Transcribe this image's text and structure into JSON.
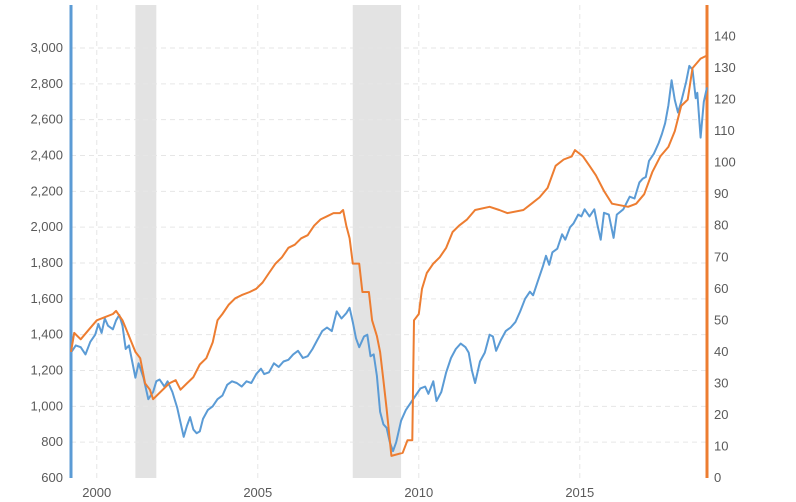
{
  "chart_data": {
    "type": "line",
    "title": "",
    "xlabel": "",
    "ylabel": "",
    "grid": true,
    "legend": "none",
    "x_range": [
      1999.2,
      2018.95
    ],
    "x_ticks": [
      {
        "value": 2000,
        "label": "2000"
      },
      {
        "value": 2005,
        "label": "2005"
      },
      {
        "value": 2010,
        "label": "2010"
      },
      {
        "value": 2015,
        "label": "2015"
      }
    ],
    "y_left": {
      "range": [
        600,
        3240
      ],
      "ticks": [
        {
          "value": 600,
          "label": "600"
        },
        {
          "value": 800,
          "label": "800"
        },
        {
          "value": 1000,
          "label": "1,000"
        },
        {
          "value": 1200,
          "label": "1,200"
        },
        {
          "value": 1400,
          "label": "1,400"
        },
        {
          "value": 1600,
          "label": "1,600"
        },
        {
          "value": 1800,
          "label": "1,800"
        },
        {
          "value": 2000,
          "label": "2,000"
        },
        {
          "value": 2200,
          "label": "2,200"
        },
        {
          "value": 2400,
          "label": "2,400"
        },
        {
          "value": 2600,
          "label": "2,600"
        },
        {
          "value": 2800,
          "label": "2,800"
        },
        {
          "value": 3000,
          "label": "3,000"
        }
      ],
      "color": "#5b9bd5"
    },
    "y_right": {
      "range": [
        0,
        150
      ],
      "ticks": [
        {
          "value": 0,
          "label": "0"
        },
        {
          "value": 10,
          "label": "10"
        },
        {
          "value": 20,
          "label": "20"
        },
        {
          "value": 30,
          "label": "30"
        },
        {
          "value": 40,
          "label": "40"
        },
        {
          "value": 50,
          "label": "50"
        },
        {
          "value": 60,
          "label": "60"
        },
        {
          "value": 70,
          "label": "70"
        },
        {
          "value": 80,
          "label": "80"
        },
        {
          "value": 90,
          "label": "90"
        },
        {
          "value": 100,
          "label": "100"
        },
        {
          "value": 110,
          "label": "110"
        },
        {
          "value": 120,
          "label": "120"
        },
        {
          "value": 130,
          "label": "130"
        },
        {
          "value": 140,
          "label": "140"
        }
      ],
      "color": "#ed7d31"
    },
    "recession_bands": [
      {
        "start": 2001.2,
        "end": 2001.85
      },
      {
        "start": 2007.95,
        "end": 2009.45
      }
    ],
    "series": [
      {
        "axis": "left",
        "color": "#5b9bd5",
        "points": [
          [
            1999.2,
            1300
          ],
          [
            1999.35,
            1340
          ],
          [
            1999.5,
            1330
          ],
          [
            1999.65,
            1290
          ],
          [
            1999.8,
            1360
          ],
          [
            1999.95,
            1400
          ],
          [
            2000.05,
            1460
          ],
          [
            2000.15,
            1410
          ],
          [
            2000.25,
            1490
          ],
          [
            2000.35,
            1450
          ],
          [
            2000.5,
            1430
          ],
          [
            2000.6,
            1480
          ],
          [
            2000.7,
            1510
          ],
          [
            2000.8,
            1450
          ],
          [
            2000.9,
            1320
          ],
          [
            2001.0,
            1340
          ],
          [
            2001.1,
            1250
          ],
          [
            2001.2,
            1160
          ],
          [
            2001.3,
            1240
          ],
          [
            2001.45,
            1160
          ],
          [
            2001.6,
            1040
          ],
          [
            2001.75,
            1080
          ],
          [
            2001.85,
            1140
          ],
          [
            2001.95,
            1150
          ],
          [
            2002.1,
            1110
          ],
          [
            2002.2,
            1140
          ],
          [
            2002.35,
            1080
          ],
          [
            2002.5,
            990
          ],
          [
            2002.6,
            910
          ],
          [
            2002.7,
            830
          ],
          [
            2002.8,
            890
          ],
          [
            2002.9,
            940
          ],
          [
            2003.0,
            870
          ],
          [
            2003.1,
            850
          ],
          [
            2003.2,
            860
          ],
          [
            2003.3,
            930
          ],
          [
            2003.45,
            980
          ],
          [
            2003.6,
            1000
          ],
          [
            2003.75,
            1040
          ],
          [
            2003.9,
            1060
          ],
          [
            2004.05,
            1120
          ],
          [
            2004.2,
            1140
          ],
          [
            2004.35,
            1130
          ],
          [
            2004.5,
            1110
          ],
          [
            2004.65,
            1140
          ],
          [
            2004.8,
            1130
          ],
          [
            2004.95,
            1180
          ],
          [
            2005.1,
            1210
          ],
          [
            2005.2,
            1180
          ],
          [
            2005.35,
            1190
          ],
          [
            2005.5,
            1240
          ],
          [
            2005.65,
            1220
          ],
          [
            2005.8,
            1250
          ],
          [
            2005.95,
            1260
          ],
          [
            2006.1,
            1290
          ],
          [
            2006.25,
            1310
          ],
          [
            2006.4,
            1270
          ],
          [
            2006.55,
            1280
          ],
          [
            2006.7,
            1320
          ],
          [
            2006.85,
            1370
          ],
          [
            2007.0,
            1420
          ],
          [
            2007.15,
            1440
          ],
          [
            2007.3,
            1420
          ],
          [
            2007.45,
            1530
          ],
          [
            2007.6,
            1490
          ],
          [
            2007.75,
            1520
          ],
          [
            2007.85,
            1550
          ],
          [
            2007.95,
            1470
          ],
          [
            2008.05,
            1380
          ],
          [
            2008.15,
            1330
          ],
          [
            2008.3,
            1390
          ],
          [
            2008.4,
            1400
          ],
          [
            2008.5,
            1280
          ],
          [
            2008.6,
            1290
          ],
          [
            2008.7,
            1170
          ],
          [
            2008.8,
            970
          ],
          [
            2008.9,
            900
          ],
          [
            2009.0,
            880
          ],
          [
            2009.1,
            800
          ],
          [
            2009.2,
            750
          ],
          [
            2009.3,
            800
          ],
          [
            2009.45,
            920
          ],
          [
            2009.6,
            980
          ],
          [
            2009.75,
            1020
          ],
          [
            2009.9,
            1060
          ],
          [
            2010.05,
            1100
          ],
          [
            2010.2,
            1110
          ],
          [
            2010.3,
            1070
          ],
          [
            2010.45,
            1140
          ],
          [
            2010.55,
            1030
          ],
          [
            2010.7,
            1080
          ],
          [
            2010.85,
            1190
          ],
          [
            2011.0,
            1270
          ],
          [
            2011.15,
            1320
          ],
          [
            2011.3,
            1350
          ],
          [
            2011.45,
            1330
          ],
          [
            2011.55,
            1300
          ],
          [
            2011.65,
            1200
          ],
          [
            2011.75,
            1130
          ],
          [
            2011.9,
            1250
          ],
          [
            2012.05,
            1300
          ],
          [
            2012.2,
            1400
          ],
          [
            2012.3,
            1390
          ],
          [
            2012.4,
            1310
          ],
          [
            2012.55,
            1370
          ],
          [
            2012.7,
            1420
          ],
          [
            2012.85,
            1440
          ],
          [
            2013.0,
            1470
          ],
          [
            2013.15,
            1530
          ],
          [
            2013.3,
            1600
          ],
          [
            2013.45,
            1640
          ],
          [
            2013.55,
            1620
          ],
          [
            2013.7,
            1700
          ],
          [
            2013.85,
            1780
          ],
          [
            2013.95,
            1840
          ],
          [
            2014.05,
            1790
          ],
          [
            2014.15,
            1860
          ],
          [
            2014.3,
            1880
          ],
          [
            2014.45,
            1960
          ],
          [
            2014.55,
            1930
          ],
          [
            2014.7,
            2000
          ],
          [
            2014.8,
            2020
          ],
          [
            2014.95,
            2070
          ],
          [
            2015.05,
            2060
          ],
          [
            2015.15,
            2100
          ],
          [
            2015.3,
            2060
          ],
          [
            2015.45,
            2100
          ],
          [
            2015.55,
            2010
          ],
          [
            2015.65,
            1930
          ],
          [
            2015.75,
            2080
          ],
          [
            2015.9,
            2070
          ],
          [
            2016.05,
            1940
          ],
          [
            2016.15,
            2070
          ],
          [
            2016.35,
            2100
          ],
          [
            2016.55,
            2170
          ],
          [
            2016.7,
            2160
          ],
          [
            2016.85,
            2250
          ],
          [
            2016.95,
            2270
          ],
          [
            2017.05,
            2280
          ],
          [
            2017.15,
            2370
          ],
          [
            2017.3,
            2410
          ],
          [
            2017.45,
            2470
          ],
          [
            2017.55,
            2520
          ],
          [
            2017.65,
            2580
          ],
          [
            2017.75,
            2680
          ],
          [
            2017.85,
            2820
          ],
          [
            2017.95,
            2710
          ],
          [
            2018.05,
            2640
          ],
          [
            2018.15,
            2700
          ],
          [
            2018.3,
            2810
          ],
          [
            2018.4,
            2900
          ],
          [
            2018.5,
            2880
          ],
          [
            2018.6,
            2720
          ],
          [
            2018.65,
            2750
          ],
          [
            2018.75,
            2500
          ],
          [
            2018.85,
            2700
          ],
          [
            2018.95,
            2780
          ]
        ]
      },
      {
        "axis": "right",
        "color": "#ed7d31",
        "points": [
          [
            1999.2,
            40
          ],
          [
            1999.3,
            46
          ],
          [
            1999.5,
            44
          ],
          [
            1999.75,
            47
          ],
          [
            2000.0,
            50
          ],
          [
            2000.25,
            51
          ],
          [
            2000.5,
            52
          ],
          [
            2000.6,
            53
          ],
          [
            2000.8,
            50
          ],
          [
            2001.0,
            45
          ],
          [
            2001.2,
            40
          ],
          [
            2001.35,
            38
          ],
          [
            2001.5,
            30
          ],
          [
            2001.65,
            28
          ],
          [
            2001.75,
            25
          ],
          [
            2002.25,
            30
          ],
          [
            2002.45,
            31
          ],
          [
            2002.6,
            28
          ],
          [
            2002.8,
            30
          ],
          [
            2003.0,
            32
          ],
          [
            2003.2,
            36
          ],
          [
            2003.4,
            38
          ],
          [
            2003.6,
            43
          ],
          [
            2003.75,
            50
          ],
          [
            2003.9,
            52
          ],
          [
            2004.1,
            55
          ],
          [
            2004.3,
            57
          ],
          [
            2004.5,
            58
          ],
          [
            2004.75,
            59
          ],
          [
            2004.95,
            60
          ],
          [
            2005.15,
            62
          ],
          [
            2005.35,
            65
          ],
          [
            2005.55,
            68
          ],
          [
            2005.75,
            70
          ],
          [
            2005.95,
            73
          ],
          [
            2006.15,
            74
          ],
          [
            2006.35,
            76
          ],
          [
            2006.55,
            77
          ],
          [
            2006.75,
            80
          ],
          [
            2006.95,
            82
          ],
          [
            2007.15,
            83
          ],
          [
            2007.35,
            84
          ],
          [
            2007.55,
            84
          ],
          [
            2007.65,
            85
          ],
          [
            2007.75,
            80
          ],
          [
            2007.85,
            76
          ],
          [
            2007.95,
            68
          ],
          [
            2008.15,
            68
          ],
          [
            2008.25,
            59
          ],
          [
            2008.45,
            59
          ],
          [
            2008.55,
            50
          ],
          [
            2008.7,
            45
          ],
          [
            2008.8,
            40
          ],
          [
            2008.9,
            31
          ],
          [
            2009.0,
            22
          ],
          [
            2009.15,
            7
          ],
          [
            2009.5,
            8
          ],
          [
            2009.65,
            12
          ],
          [
            2009.8,
            12
          ],
          [
            2009.85,
            50
          ],
          [
            2010.0,
            52
          ],
          [
            2010.1,
            60
          ],
          [
            2010.25,
            65
          ],
          [
            2010.45,
            68
          ],
          [
            2010.65,
            70
          ],
          [
            2010.85,
            73
          ],
          [
            2011.05,
            78
          ],
          [
            2011.25,
            80
          ],
          [
            2011.5,
            82
          ],
          [
            2011.75,
            85
          ],
          [
            2012.2,
            86
          ],
          [
            2012.5,
            85
          ],
          [
            2012.75,
            84
          ],
          [
            2013.25,
            85
          ],
          [
            2013.5,
            87
          ],
          [
            2013.75,
            89
          ],
          [
            2014.0,
            92
          ],
          [
            2014.25,
            99
          ],
          [
            2014.5,
            101
          ],
          [
            2014.75,
            102
          ],
          [
            2014.85,
            104
          ],
          [
            2015.1,
            102
          ],
          [
            2015.3,
            99
          ],
          [
            2015.5,
            96
          ],
          [
            2015.75,
            91
          ],
          [
            2016.0,
            87
          ],
          [
            2016.5,
            86
          ],
          [
            2016.75,
            87
          ],
          [
            2017.0,
            90
          ],
          [
            2017.25,
            97
          ],
          [
            2017.5,
            102
          ],
          [
            2017.75,
            105
          ],
          [
            2017.95,
            110
          ],
          [
            2018.15,
            118
          ],
          [
            2018.35,
            120
          ],
          [
            2018.5,
            130
          ],
          [
            2018.75,
            133
          ],
          [
            2018.95,
            134
          ]
        ]
      }
    ]
  }
}
